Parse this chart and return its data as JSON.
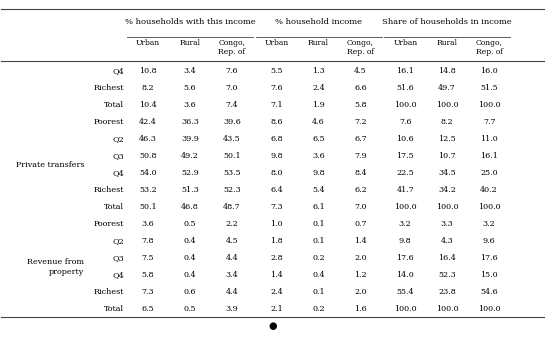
{
  "header_top": [
    "% households with this income",
    "% household income",
    "Share of households in income"
  ],
  "header_sub": [
    "Urban",
    "Rural",
    "Congo,\nRep. of",
    "Urban",
    "Rural",
    "Congo,\nRep. of",
    "Urban",
    "Rural",
    "Congo,\nRep. of"
  ],
  "sections": [
    {
      "label": "",
      "rows": [
        [
          "Q4",
          "10.8",
          "3.4",
          "7.6",
          "5.5",
          "1.3",
          "4.5",
          "16.1",
          "14.8",
          "16.0"
        ],
        [
          "Richest",
          "8.2",
          "5.6",
          "7.0",
          "7.6",
          "2.4",
          "6.6",
          "51.6",
          "49.7",
          "51.5"
        ],
        [
          "Total",
          "10.4",
          "3.6",
          "7.4",
          "7.1",
          "1.9",
          "5.8",
          "100.0",
          "100.0",
          "100.0"
        ]
      ]
    },
    {
      "label": "Private transfers",
      "rows": [
        [
          "Poorest",
          "42.4",
          "36.3",
          "39.6",
          "8.6",
          "4.6",
          "7.2",
          "7.6",
          "8.2",
          "7.7"
        ],
        [
          "Q2",
          "46.3",
          "39.9",
          "43.5",
          "6.8",
          "6.5",
          "6.7",
          "10.6",
          "12.5",
          "11.0"
        ],
        [
          "Q3",
          "50.8",
          "49.2",
          "50.1",
          "9.8",
          "3.6",
          "7.9",
          "17.5",
          "10.7",
          "16.1"
        ],
        [
          "Q4",
          "54.0",
          "52.9",
          "53.5",
          "8.0",
          "9.8",
          "8.4",
          "22.5",
          "34.5",
          "25.0"
        ],
        [
          "Richest",
          "53.2",
          "51.3",
          "52.3",
          "6.4",
          "5.4",
          "6.2",
          "41.7",
          "34.2",
          "40.2"
        ],
        [
          "Total",
          "50.1",
          "46.8",
          "48.7",
          "7.3",
          "6.1",
          "7.0",
          "100.0",
          "100.0",
          "100.0"
        ]
      ]
    },
    {
      "label": "Revenue from\nproperty",
      "rows": [
        [
          "Poorest",
          "3.6",
          "0.5",
          "2.2",
          "1.0",
          "0.1",
          "0.7",
          "3.2",
          "3.3",
          "3.2"
        ],
        [
          "Q2",
          "7.8",
          "0.4",
          "4.5",
          "1.8",
          "0.1",
          "1.4",
          "9.8",
          "4.3",
          "9.6"
        ],
        [
          "Q3",
          "7.5",
          "0.4",
          "4.4",
          "2.8",
          "0.2",
          "2.0",
          "17.6",
          "16.4",
          "17.6"
        ],
        [
          "Q4",
          "5.8",
          "0.4",
          "3.4",
          "1.4",
          "0.4",
          "1.2",
          "14.0",
          "52.3",
          "15.0"
        ],
        [
          "Richest",
          "7.3",
          "0.6",
          "4.4",
          "2.4",
          "0.1",
          "2.0",
          "55.4",
          "23.8",
          "54.6"
        ],
        [
          "Total",
          "6.5",
          "0.5",
          "3.9",
          "2.1",
          "0.2",
          "1.6",
          "100.0",
          "100.0",
          "100.0"
        ]
      ]
    }
  ],
  "bg_color": "#ffffff",
  "text_color": "#000000",
  "line_color": "#444444",
  "font_size": 5.8,
  "header_font_size": 6.0
}
